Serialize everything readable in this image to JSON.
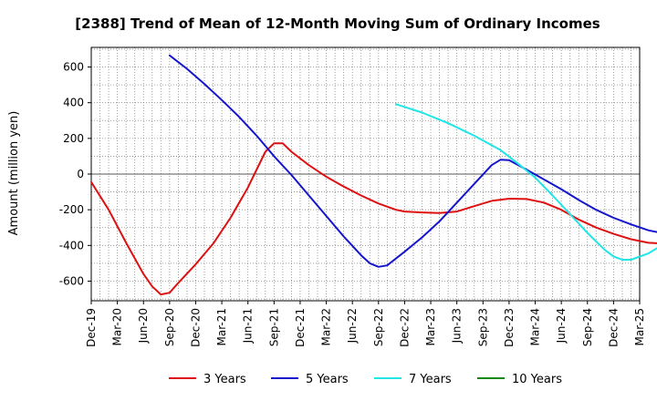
{
  "chart_data": {
    "type": "line",
    "title": "[2388]  Trend of Mean of 12-Month Moving Sum of Ordinary Incomes",
    "xlabel": "",
    "ylabel": "Amount (million yen)",
    "ylim": [
      -710,
      710
    ],
    "yticks": [
      -600,
      -400,
      -200,
      0,
      200,
      400,
      600
    ],
    "x_ticks": [
      "Dec-19",
      "Mar-20",
      "Jun-20",
      "Sep-20",
      "Dec-20",
      "Mar-21",
      "Jun-21",
      "Sep-21",
      "Dec-21",
      "Mar-22",
      "Jun-22",
      "Sep-22",
      "Dec-22",
      "Mar-23",
      "Jun-23",
      "Sep-23",
      "Dec-23",
      "Mar-24",
      "Jun-24",
      "Sep-24",
      "Dec-24",
      "Mar-25"
    ],
    "x_range_months": [
      0,
      63
    ],
    "grid": true,
    "legend_position": "bottom",
    "series": [
      {
        "name": "3 Years",
        "color": "#dd1111",
        "points": [
          [
            0,
            -45
          ],
          [
            2,
            -200
          ],
          [
            4,
            -385
          ],
          [
            6,
            -560
          ],
          [
            7,
            -630
          ],
          [
            8,
            -675
          ],
          [
            9,
            -665
          ],
          [
            10,
            -610
          ],
          [
            12,
            -505
          ],
          [
            14,
            -390
          ],
          [
            16,
            -245
          ],
          [
            18,
            -75
          ],
          [
            20,
            125
          ],
          [
            21,
            172
          ],
          [
            22,
            172
          ],
          [
            23,
            125
          ],
          [
            25,
            50
          ],
          [
            27,
            -15
          ],
          [
            29,
            -70
          ],
          [
            31,
            -120
          ],
          [
            33,
            -165
          ],
          [
            35,
            -200
          ],
          [
            36,
            -210
          ],
          [
            38,
            -215
          ],
          [
            40,
            -218
          ],
          [
            42,
            -210
          ],
          [
            44,
            -180
          ],
          [
            46,
            -150
          ],
          [
            48,
            -138
          ],
          [
            50,
            -140
          ],
          [
            52,
            -160
          ],
          [
            54,
            -200
          ],
          [
            56,
            -255
          ],
          [
            58,
            -300
          ],
          [
            60,
            -335
          ],
          [
            62,
            -365
          ],
          [
            64,
            -385
          ],
          [
            66,
            -390
          ]
        ]
      },
      {
        "name": "5 Years",
        "color": "#1515cc",
        "points": [
          [
            9,
            665
          ],
          [
            11,
            590
          ],
          [
            13,
            505
          ],
          [
            15,
            415
          ],
          [
            17,
            320
          ],
          [
            19,
            215
          ],
          [
            21,
            100
          ],
          [
            23,
            -5
          ],
          [
            25,
            -120
          ],
          [
            27,
            -235
          ],
          [
            29,
            -350
          ],
          [
            31,
            -455
          ],
          [
            32,
            -500
          ],
          [
            33,
            -520
          ],
          [
            34,
            -512
          ],
          [
            36,
            -435
          ],
          [
            38,
            -355
          ],
          [
            40,
            -265
          ],
          [
            42,
            -160
          ],
          [
            44,
            -55
          ],
          [
            46,
            50
          ],
          [
            47,
            80
          ],
          [
            48,
            78
          ],
          [
            50,
            25
          ],
          [
            52,
            -30
          ],
          [
            54,
            -85
          ],
          [
            56,
            -145
          ],
          [
            58,
            -200
          ],
          [
            60,
            -245
          ],
          [
            62,
            -282
          ],
          [
            64,
            -315
          ],
          [
            66,
            -335
          ]
        ]
      },
      {
        "name": "7 Years",
        "color": "#22e5e5",
        "points": [
          [
            35,
            392
          ],
          [
            38,
            345
          ],
          [
            41,
            285
          ],
          [
            44,
            215
          ],
          [
            47,
            135
          ],
          [
            49,
            60
          ],
          [
            51,
            -20
          ],
          [
            53,
            -120
          ],
          [
            55,
            -225
          ],
          [
            57,
            -330
          ],
          [
            59,
            -425
          ],
          [
            60,
            -462
          ],
          [
            61,
            -480
          ],
          [
            62,
            -480
          ],
          [
            64,
            -445
          ],
          [
            66,
            -385
          ]
        ]
      },
      {
        "name": "10 Years",
        "color": "#118811",
        "points": []
      }
    ]
  }
}
